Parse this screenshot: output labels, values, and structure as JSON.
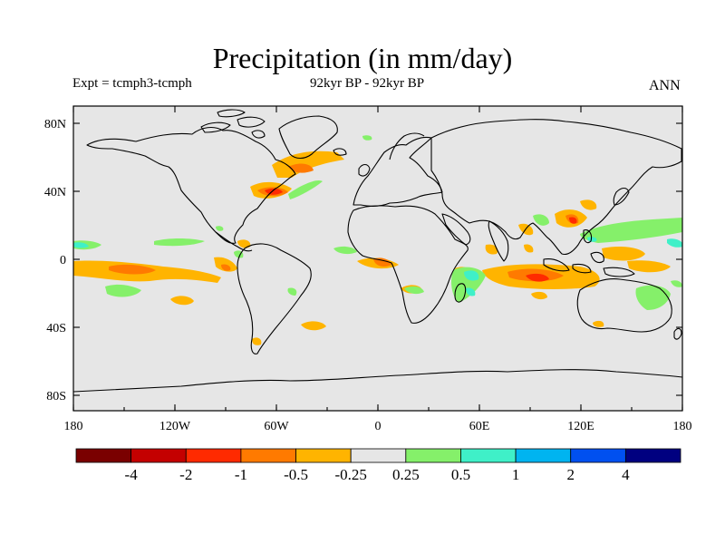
{
  "title": "Precipitation (in mm/day)",
  "left_subtitle": "Expt = tcmph3-tcmph",
  "center_subtitle": "92kyr BP - 92kyr BP",
  "right_subtitle": "ANN",
  "lon_ticks": [
    "180",
    "120W",
    "60W",
    "0",
    "60E",
    "120E",
    "180"
  ],
  "lat_ticks": [
    "80N",
    "40N",
    "0",
    "40S",
    "80S"
  ],
  "colorbar": {
    "colors": [
      "#7a0000",
      "#c40000",
      "#ff2a00",
      "#ff7a00",
      "#ffb400",
      "#e6e6e6",
      "#85f06a",
      "#3ff0c8",
      "#00b4f0",
      "#0050f0",
      "#000080"
    ],
    "labels": [
      "-4",
      "-2",
      "-1",
      "-0.5",
      "-0.25",
      "0.25",
      "0.5",
      "1",
      "2",
      "4"
    ]
  },
  "palette": {
    "background": "#e6e6e6",
    "orange": "#ffb400",
    "dark_orange": "#ff7a00",
    "red": "#ff2a00",
    "green": "#85f06a",
    "cyan": "#3ff0c8"
  }
}
